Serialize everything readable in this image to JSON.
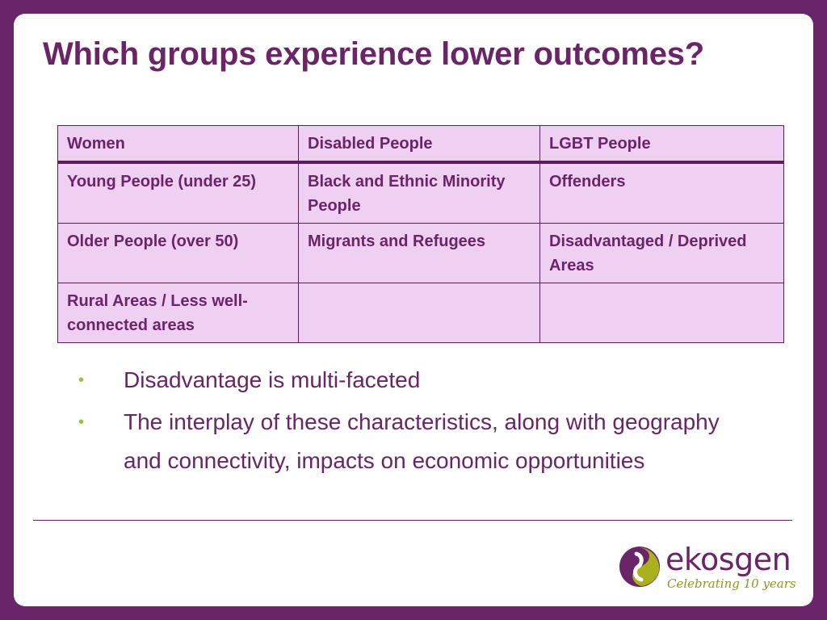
{
  "slide": {
    "title": "Which groups experience lower outcomes?"
  },
  "table": {
    "rows": [
      [
        "Women",
        "Disabled People",
        "LGBT People"
      ],
      [
        "Young People (under 25)",
        "Black and Ethnic Minority People",
        "Offenders"
      ],
      [
        "Older People (over 50)",
        "Migrants and Refugees",
        "Disadvantaged / Deprived Areas"
      ],
      [
        "Rural Areas / Less well-connected areas",
        "",
        ""
      ]
    ]
  },
  "bullets": [
    "Disadvantage is multi-faceted",
    "The interplay of these characteristics, along with geography and connectivity, impacts on economic opportunities"
  ],
  "logo": {
    "brand": "ekosgen",
    "tagline": "Celebrating 10 years",
    "icon": "ekosgen-swirl-icon"
  },
  "colors": {
    "frame": "#6a2468",
    "table_fill": "#f0d0f2",
    "bullet": "#8dc63f",
    "tagline": "#8a9a1e"
  }
}
